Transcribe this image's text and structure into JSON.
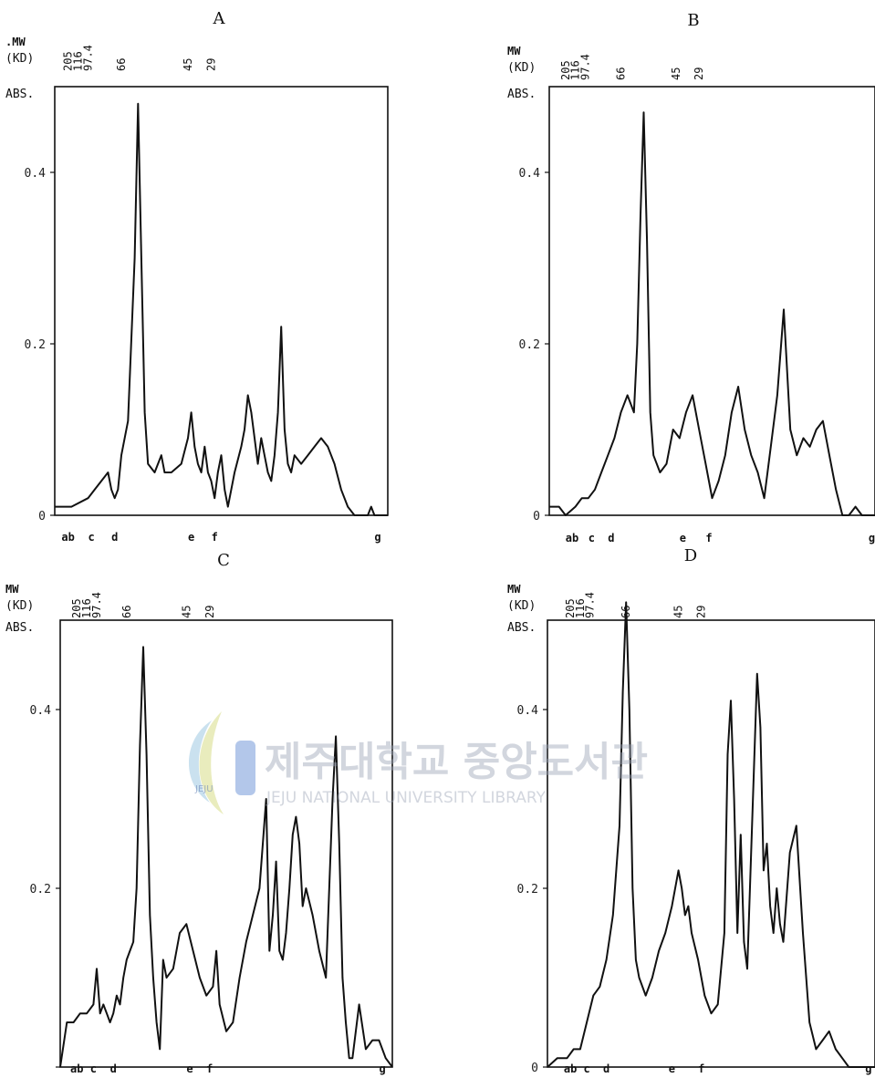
{
  "chart_data": [
    {
      "type": "line",
      "title": "A",
      "mw_label": ".MW",
      "mw_unit": "(KD)",
      "ylabel": "ABS.",
      "ylim": [
        0,
        0.5
      ],
      "xlim": [
        0,
        100
      ],
      "yticks": [
        {
          "v": 0,
          "label": "0"
        },
        {
          "v": 0.2,
          "label": "0.2"
        },
        {
          "v": 0.4,
          "label": "0.4"
        }
      ],
      "mw_markers": [
        {
          "x": 4,
          "label": "205"
        },
        {
          "x": 7,
          "label": "116"
        },
        {
          "x": 10,
          "label": "97.4"
        },
        {
          "x": 20,
          "label": "66"
        },
        {
          "x": 40,
          "label": "45"
        },
        {
          "x": 47,
          "label": "29"
        }
      ],
      "lane_markers": [
        {
          "x": 4,
          "label": "ab"
        },
        {
          "x": 11,
          "label": "c"
        },
        {
          "x": 18,
          "label": "d"
        },
        {
          "x": 41,
          "label": "e"
        },
        {
          "x": 48,
          "label": "f"
        },
        {
          "x": 97,
          "label": "g"
        }
      ],
      "series": [
        {
          "x": [
            0,
            5,
            10,
            12,
            14,
            16,
            17,
            18,
            19,
            20,
            22,
            24,
            25,
            26,
            27,
            28,
            30,
            32,
            33,
            35,
            38,
            40,
            41,
            42,
            43,
            44,
            45,
            46,
            47,
            48,
            49,
            50,
            51,
            52,
            54,
            56,
            57,
            58,
            59,
            60,
            61,
            62,
            63,
            64,
            65,
            66,
            67,
            68,
            69,
            70,
            71,
            72,
            74,
            76,
            78,
            80,
            82,
            84,
            86,
            88,
            90,
            92,
            94,
            95,
            96,
            98,
            100
          ],
          "y": [
            0.01,
            0.01,
            0.02,
            0.03,
            0.04,
            0.05,
            0.03,
            0.02,
            0.03,
            0.07,
            0.11,
            0.3,
            0.48,
            0.3,
            0.12,
            0.06,
            0.05,
            0.07,
            0.05,
            0.05,
            0.06,
            0.09,
            0.12,
            0.08,
            0.06,
            0.05,
            0.08,
            0.05,
            0.04,
            0.02,
            0.05,
            0.07,
            0.03,
            0.01,
            0.05,
            0.08,
            0.1,
            0.14,
            0.12,
            0.09,
            0.06,
            0.09,
            0.07,
            0.05,
            0.04,
            0.07,
            0.12,
            0.22,
            0.1,
            0.06,
            0.05,
            0.07,
            0.06,
            0.07,
            0.08,
            0.09,
            0.08,
            0.06,
            0.03,
            0.01,
            0.0,
            0.0,
            0.0,
            0.01,
            0.0,
            0.0,
            0.0
          ]
        }
      ]
    },
    {
      "type": "line",
      "title": "B",
      "mw_label": "MW",
      "mw_unit": "(KD)",
      "ylabel": "ABS.",
      "ylim": [
        0,
        0.5
      ],
      "xlim": [
        0,
        100
      ],
      "yticks": [
        {
          "v": 0,
          "label": "0"
        },
        {
          "v": 0.2,
          "label": "0.2"
        },
        {
          "v": 0.4,
          "label": "0.4"
        }
      ],
      "mw_markers": [
        {
          "x": 5,
          "label": "205"
        },
        {
          "x": 8,
          "label": "116"
        },
        {
          "x": 11,
          "label": "97.4"
        },
        {
          "x": 22,
          "label": "66"
        },
        {
          "x": 39,
          "label": "45"
        },
        {
          "x": 46,
          "label": "29"
        }
      ],
      "lane_markers": [
        {
          "x": 7,
          "label": "ab"
        },
        {
          "x": 13,
          "label": "c"
        },
        {
          "x": 19,
          "label": "d"
        },
        {
          "x": 41,
          "label": "e"
        },
        {
          "x": 49,
          "label": "f"
        },
        {
          "x": 99,
          "label": "g"
        }
      ],
      "series": [
        {
          "x": [
            0,
            3,
            5,
            8,
            10,
            12,
            14,
            16,
            18,
            20,
            22,
            24,
            26,
            27,
            28,
            29,
            30,
            31,
            32,
            34,
            36,
            38,
            40,
            42,
            44,
            46,
            48,
            50,
            52,
            54,
            56,
            58,
            60,
            62,
            64,
            66,
            68,
            70,
            72,
            74,
            76,
            78,
            80,
            82,
            84,
            86,
            88,
            90,
            92,
            94,
            96,
            98,
            100
          ],
          "y": [
            0.01,
            0.01,
            0.0,
            0.01,
            0.02,
            0.02,
            0.03,
            0.05,
            0.07,
            0.09,
            0.12,
            0.14,
            0.12,
            0.2,
            0.35,
            0.47,
            0.32,
            0.12,
            0.07,
            0.05,
            0.06,
            0.1,
            0.09,
            0.12,
            0.14,
            0.1,
            0.06,
            0.02,
            0.04,
            0.07,
            0.12,
            0.15,
            0.1,
            0.07,
            0.05,
            0.02,
            0.08,
            0.14,
            0.24,
            0.1,
            0.07,
            0.09,
            0.08,
            0.1,
            0.11,
            0.07,
            0.03,
            0.0,
            0.0,
            0.01,
            0.0,
            0.0,
            0.0
          ]
        }
      ]
    },
    {
      "type": "line",
      "title": "C",
      "mw_label": "MW",
      "mw_unit": "(KD)",
      "ylabel": "ABS.",
      "ylim": [
        0,
        0.5
      ],
      "xlim": [
        0,
        100
      ],
      "yticks": [
        {
          "v": 0,
          "label": ""
        },
        {
          "v": 0.2,
          "label": "0.2"
        },
        {
          "v": 0.4,
          "label": "0.4"
        }
      ],
      "mw_markers": [
        {
          "x": 5,
          "label": "205"
        },
        {
          "x": 8,
          "label": "116"
        },
        {
          "x": 11,
          "label": "97.4"
        },
        {
          "x": 20,
          "label": "66"
        },
        {
          "x": 38,
          "label": "45"
        },
        {
          "x": 45,
          "label": "29"
        }
      ],
      "lane_markers": [
        {
          "x": 5,
          "label": "ab"
        },
        {
          "x": 10,
          "label": "c"
        },
        {
          "x": 16,
          "label": "d"
        },
        {
          "x": 39,
          "label": "e"
        },
        {
          "x": 45,
          "label": "f"
        },
        {
          "x": 97,
          "label": "g"
        }
      ],
      "series": [
        {
          "x": [
            0,
            2,
            4,
            6,
            8,
            10,
            11,
            12,
            13,
            14,
            15,
            16,
            17,
            18,
            19,
            20,
            21,
            22,
            23,
            24,
            25,
            26,
            27,
            28,
            29,
            30,
            31,
            32,
            34,
            36,
            38,
            40,
            42,
            44,
            46,
            47,
            48,
            50,
            52,
            54,
            56,
            58,
            60,
            62,
            63,
            64,
            65,
            66,
            67,
            68,
            69,
            70,
            71,
            72,
            73,
            74,
            76,
            78,
            80,
            82,
            83,
            84,
            85,
            86,
            87,
            88,
            90,
            92,
            94,
            96,
            98,
            100
          ],
          "y": [
            0.0,
            0.05,
            0.05,
            0.06,
            0.06,
            0.07,
            0.11,
            0.06,
            0.07,
            0.06,
            0.05,
            0.06,
            0.08,
            0.07,
            0.1,
            0.12,
            0.13,
            0.14,
            0.2,
            0.36,
            0.47,
            0.35,
            0.17,
            0.1,
            0.05,
            0.02,
            0.12,
            0.1,
            0.11,
            0.15,
            0.16,
            0.13,
            0.1,
            0.08,
            0.09,
            0.13,
            0.07,
            0.04,
            0.05,
            0.1,
            0.14,
            0.17,
            0.2,
            0.3,
            0.13,
            0.17,
            0.23,
            0.13,
            0.12,
            0.15,
            0.2,
            0.26,
            0.28,
            0.25,
            0.18,
            0.2,
            0.17,
            0.13,
            0.1,
            0.3,
            0.37,
            0.25,
            0.1,
            0.05,
            0.01,
            0.01,
            0.07,
            0.02,
            0.03,
            0.03,
            0.01,
            0.0
          ]
        }
      ]
    },
    {
      "type": "line",
      "title": "D",
      "mw_label": "MW",
      "mw_unit": "(KD)",
      "ylabel": "ABS.",
      "ylim": [
        0,
        0.5
      ],
      "xlim": [
        0,
        100
      ],
      "yticks": [
        {
          "v": 0,
          "label": "0"
        },
        {
          "v": 0.2,
          "label": "0.2"
        },
        {
          "v": 0.4,
          "label": "0.4"
        }
      ],
      "mw_markers": [
        {
          "x": 7,
          "label": "205"
        },
        {
          "x": 10,
          "label": "116"
        },
        {
          "x": 13,
          "label": "97.4"
        },
        {
          "x": 24,
          "label": "66"
        },
        {
          "x": 40,
          "label": "45"
        },
        {
          "x": 47,
          "label": "29"
        }
      ],
      "lane_markers": [
        {
          "x": 7,
          "label": "ab"
        },
        {
          "x": 12,
          "label": "c"
        },
        {
          "x": 18,
          "label": "d"
        },
        {
          "x": 38,
          "label": "e"
        },
        {
          "x": 47,
          "label": "f"
        },
        {
          "x": 98,
          "label": "g"
        }
      ],
      "series": [
        {
          "x": [
            0,
            3,
            6,
            8,
            10,
            12,
            14,
            16,
            18,
            20,
            21,
            22,
            23,
            24,
            25,
            26,
            27,
            28,
            30,
            32,
            34,
            36,
            38,
            40,
            41,
            42,
            43,
            44,
            46,
            48,
            50,
            52,
            54,
            55,
            56,
            57,
            58,
            59,
            60,
            61,
            62,
            63,
            64,
            65,
            66,
            67,
            68,
            69,
            70,
            71,
            72,
            74,
            76,
            78,
            80,
            82,
            84,
            86,
            88,
            90,
            92,
            94,
            96,
            98,
            100
          ],
          "y": [
            0.0,
            0.01,
            0.01,
            0.02,
            0.02,
            0.05,
            0.08,
            0.09,
            0.12,
            0.17,
            0.22,
            0.27,
            0.42,
            0.52,
            0.4,
            0.2,
            0.12,
            0.1,
            0.08,
            0.1,
            0.13,
            0.15,
            0.18,
            0.22,
            0.2,
            0.17,
            0.18,
            0.15,
            0.12,
            0.08,
            0.06,
            0.07,
            0.15,
            0.35,
            0.41,
            0.3,
            0.15,
            0.26,
            0.14,
            0.11,
            0.22,
            0.33,
            0.44,
            0.38,
            0.22,
            0.25,
            0.18,
            0.15,
            0.2,
            0.16,
            0.14,
            0.24,
            0.27,
            0.15,
            0.05,
            0.02,
            0.03,
            0.04,
            0.02,
            0.01,
            0.0,
            0.0,
            0.0,
            0.0,
            0.0
          ]
        }
      ]
    }
  ],
  "watermark": {
    "title": "제주대학교 중앙도서관",
    "subtitle": "JEJU NATIONAL UNIVERSITY LIBRARY",
    "logo_text": "JEJU"
  }
}
